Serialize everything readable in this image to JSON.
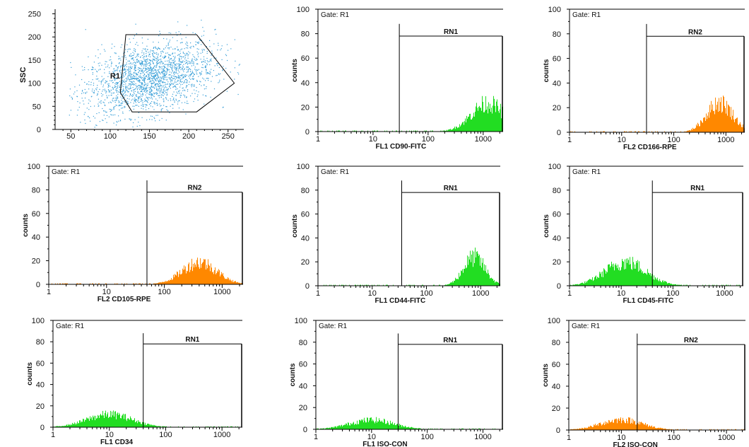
{
  "chart_data": [
    {
      "type": "scatter",
      "ylabel": "SSC",
      "xlim": [
        30,
        270
      ],
      "ylim": [
        0,
        260
      ],
      "x_ticks": [
        "50",
        "100",
        "150",
        "200",
        "250"
      ],
      "y_ticks": [
        "0",
        "50",
        "100",
        "150",
        "200",
        "250"
      ],
      "gate_label": "R1",
      "gate_polygon": [
        [
          120,
          205
        ],
        [
          210,
          205
        ],
        [
          258,
          100
        ],
        [
          210,
          38
        ],
        [
          128,
          38
        ],
        [
          113,
          80
        ]
      ],
      "color": "#3aa0d8",
      "cluster": {
        "center": [
          150,
          112
        ],
        "spread": [
          55,
          50
        ],
        "count": 2200
      }
    },
    {
      "type": "histogram",
      "gate": "Gate: R1",
      "xlabel": "FL1  CD90-FITC",
      "ylabel": "counts",
      "ylim": [
        0,
        100
      ],
      "y_ticks": [
        "0",
        "20",
        "40",
        "60",
        "80",
        "100"
      ],
      "x_ticks": [
        "1",
        "10",
        "100",
        "1000"
      ],
      "marker_label": "RN1",
      "marker_range": [
        30,
        2300
      ],
      "color": "#22dd22",
      "peak": {
        "center": 1200,
        "spread": 0.3,
        "height": 27
      },
      "xlabel_offset": 80
    },
    {
      "type": "histogram",
      "gate": "Gate: R1",
      "xlabel": "FL2  CD166-RPE",
      "ylabel": "counts",
      "ylim": [
        0,
        100
      ],
      "y_ticks": [
        "0",
        "20",
        "40",
        "60",
        "80",
        "100"
      ],
      "x_ticks": [
        "1",
        "10",
        "100",
        "1000"
      ],
      "marker_label": "RN2",
      "marker_range": [
        30,
        2300
      ],
      "color": "#ff8800",
      "peak": {
        "center": 750,
        "spread": 0.25,
        "height": 28
      },
      "xlabel_offset": 70
    },
    {
      "type": "histogram",
      "gate": "Gate: R1",
      "xlabel": "FL2  CD105-RPE",
      "ylabel": "counts",
      "ylim": [
        0,
        100
      ],
      "y_ticks": [
        "0",
        "20",
        "40",
        "60",
        "80",
        "100"
      ],
      "x_ticks": [
        "1",
        "10",
        "100",
        "1000"
      ],
      "marker_label": "RN2",
      "marker_range": [
        50,
        2300
      ],
      "color": "#ff8800",
      "peak": {
        "center": 400,
        "spread": 0.3,
        "height": 22
      },
      "xlabel_offset": 0
    },
    {
      "type": "histogram",
      "gate": "Gate: R1",
      "xlabel": "FL1  CD44-FITC",
      "ylabel": "counts",
      "ylim": [
        0,
        100
      ],
      "y_ticks": [
        "0",
        "20",
        "40",
        "60",
        "80",
        "100"
      ],
      "x_ticks": [
        "1",
        "10",
        "100",
        "1000"
      ],
      "marker_label": "RN1",
      "marker_range": [
        35,
        2300
      ],
      "color": "#22dd22",
      "peak": {
        "center": 750,
        "spread": 0.2,
        "height": 28
      },
      "xlabel_offset": 80
    },
    {
      "type": "histogram",
      "gate": "Gate: R1",
      "xlabel": "FL1  CD45-FITC",
      "ylabel": "counts",
      "ylim": [
        0,
        100
      ],
      "y_ticks": [
        "0",
        "20",
        "40",
        "60",
        "80",
        "100"
      ],
      "x_ticks": [
        "1",
        "10",
        "100",
        "1000"
      ],
      "marker_label": "RN1",
      "marker_range": [
        40,
        2300
      ],
      "color": "#22dd22",
      "peak": {
        "center": 12,
        "spread": 0.4,
        "height": 23
      },
      "xlabel_offset": 70
    },
    {
      "type": "histogram",
      "gate": "Gate: R1",
      "xlabel": "FL1  CD34",
      "ylabel": "counts",
      "ylim": [
        0,
        100
      ],
      "y_ticks": [
        "0",
        "20",
        "40",
        "60",
        "80",
        "100"
      ],
      "x_ticks": [
        "1",
        "10",
        "100",
        "1000"
      ],
      "marker_label": "RN1",
      "marker_range": [
        40,
        2300
      ],
      "color": "#22dd22",
      "peak": {
        "center": 10,
        "spread": 0.4,
        "height": 14
      },
      "xlabel_offset": 0
    },
    {
      "type": "histogram",
      "gate": "Gate: R1",
      "xlabel": "FL1  ISO-CON",
      "ylabel": "counts",
      "ylim": [
        0,
        100
      ],
      "y_ticks": [
        "0",
        "20",
        "40",
        "60",
        "80",
        "100"
      ],
      "x_ticks": [
        "1",
        "10",
        "100",
        "1000"
      ],
      "marker_label": "RN1",
      "marker_range": [
        30,
        2300
      ],
      "color": "#22dd22",
      "peak": {
        "center": 10,
        "spread": 0.4,
        "height": 10
      },
      "xlabel_offset": 0
    },
    {
      "type": "histogram",
      "gate": "Gate: R1",
      "xlabel": "FL2  ISO-CON",
      "ylabel": "counts",
      "ylim": [
        0,
        100
      ],
      "y_ticks": [
        "0",
        "20",
        "40",
        "60",
        "80",
        "100"
      ],
      "x_ticks": [
        "1",
        "10",
        "100",
        "1000"
      ],
      "marker_label": "RN2",
      "marker_range": [
        20,
        2300
      ],
      "color": "#ff8800",
      "peak": {
        "center": 10,
        "spread": 0.4,
        "height": 11
      },
      "xlabel_offset": 0
    }
  ]
}
